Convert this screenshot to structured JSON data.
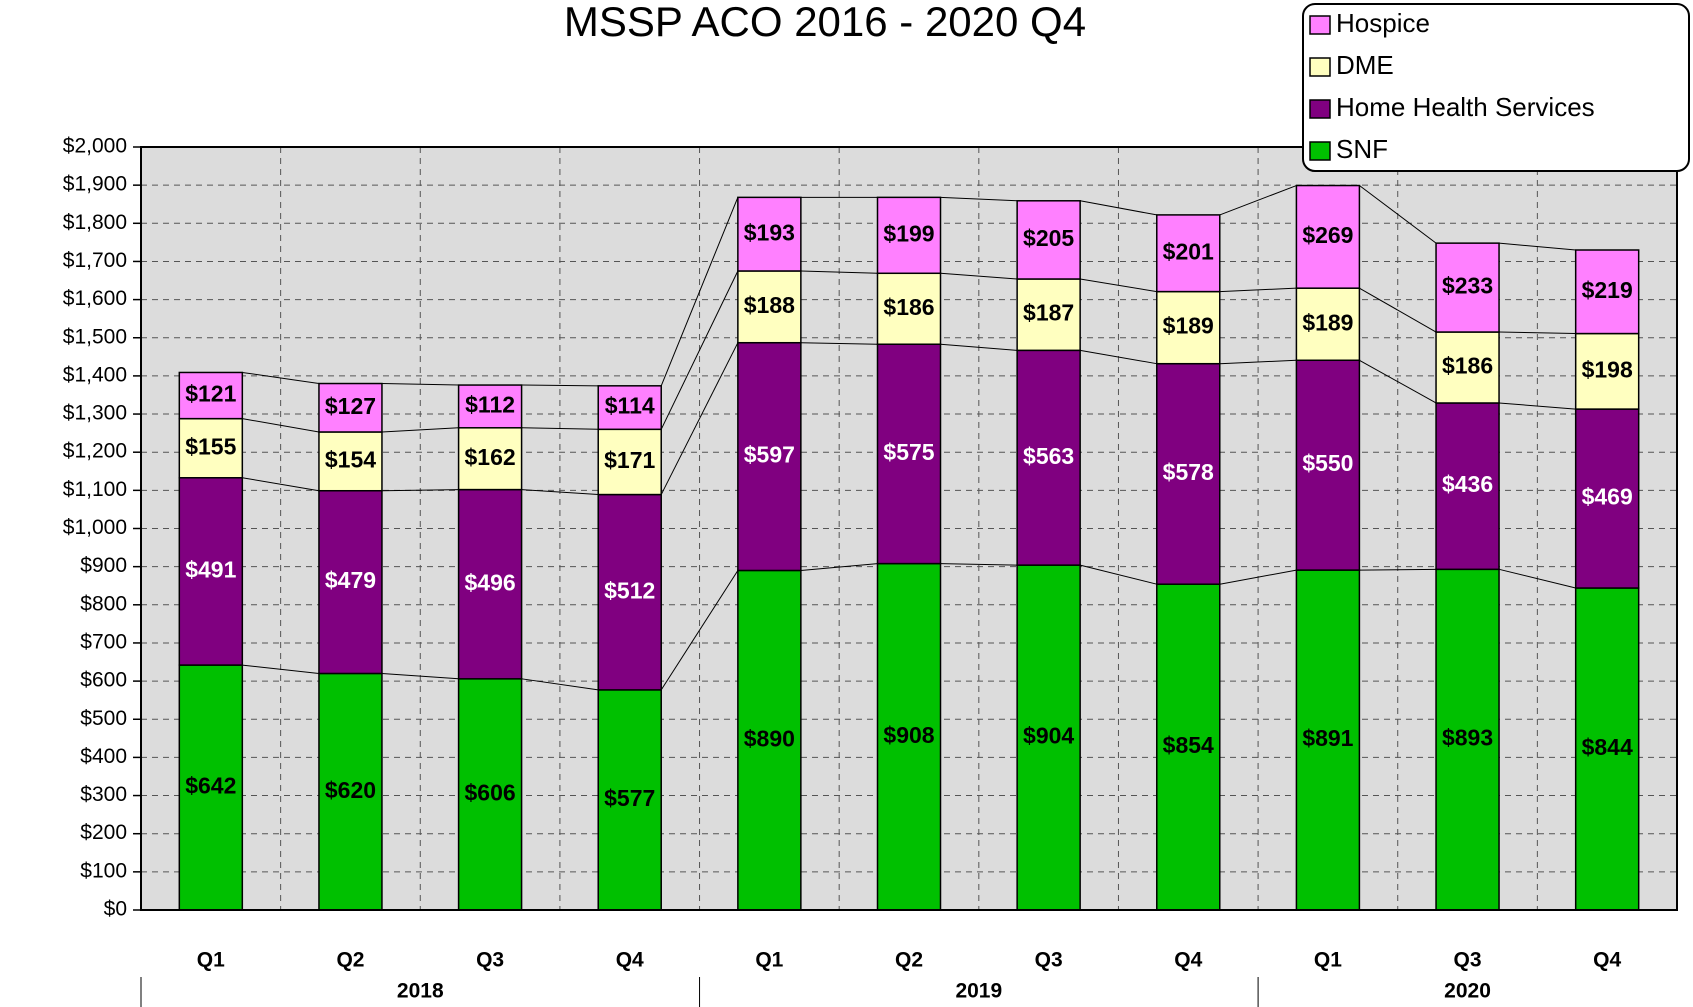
{
  "chart_data": {
    "type": "stacked_bar",
    "title": "MSSP ACO 2016 - 2020 Q4",
    "groups": [
      {
        "label": "2018",
        "categories": [
          "Q1",
          "Q2",
          "Q3",
          "Q4"
        ]
      },
      {
        "label": "2019",
        "categories": [
          "Q1",
          "Q2",
          "Q3",
          "Q4"
        ]
      },
      {
        "label": "2020",
        "categories": [
          "Q1",
          "Q3",
          "Q4"
        ]
      }
    ],
    "series": [
      {
        "name": "SNF",
        "color": "#00c000",
        "label_color": "#000000",
        "values": [
          642,
          620,
          606,
          577,
          890,
          908,
          904,
          854,
          891,
          893,
          844
        ],
        "value_labels": [
          "$642",
          "$620",
          "$606",
          "$577",
          "$890",
          "$908",
          "$904",
          "$854",
          "$891",
          "$893",
          "$844"
        ]
      },
      {
        "name": "Home Health Services",
        "color": "#800080",
        "label_color": "#ffffff",
        "values": [
          491,
          479,
          496,
          512,
          597,
          575,
          563,
          578,
          550,
          436,
          469
        ],
        "value_labels": [
          "$491",
          "$479",
          "$496",
          "$512",
          "$597",
          "$575",
          "$563",
          "$578",
          "$550",
          "$436",
          "$469"
        ]
      },
      {
        "name": "DME",
        "color": "#ffffc0",
        "label_color": "#000000",
        "values": [
          155,
          154,
          162,
          171,
          188,
          186,
          187,
          189,
          189,
          186,
          198
        ],
        "value_labels": [
          "$155",
          "$154",
          "$162",
          "$171",
          "$188",
          "$186",
          "$187",
          "$189",
          "$189",
          "$186",
          "$198"
        ]
      },
      {
        "name": "Hospice",
        "color": "#ff80ff",
        "label_color": "#000000",
        "values": [
          121,
          127,
          112,
          114,
          193,
          199,
          205,
          201,
          269,
          233,
          219
        ],
        "value_labels": [
          "$121",
          "$127",
          "$112",
          "$114",
          "$193",
          "$199",
          "$205",
          "$201",
          "$269",
          "$233",
          "$219"
        ]
      }
    ],
    "ylim": [
      0,
      2000
    ],
    "yticks": [
      {
        "value": 0,
        "label": "$0"
      },
      {
        "value": 100,
        "label": "$100"
      },
      {
        "value": 200,
        "label": "$200"
      },
      {
        "value": 300,
        "label": "$300"
      },
      {
        "value": 400,
        "label": "$400"
      },
      {
        "value": 500,
        "label": "$500"
      },
      {
        "value": 600,
        "label": "$600"
      },
      {
        "value": 700,
        "label": "$700"
      },
      {
        "value": 800,
        "label": "$800"
      },
      {
        "value": 900,
        "label": "$900"
      },
      {
        "value": 1000,
        "label": "$1,000"
      },
      {
        "value": 1100,
        "label": "$1,100"
      },
      {
        "value": 1200,
        "label": "$1,200"
      },
      {
        "value": 1300,
        "label": "$1,300"
      },
      {
        "value": 1400,
        "label": "$1,400"
      },
      {
        "value": 1500,
        "label": "$1,500"
      },
      {
        "value": 1600,
        "label": "$1,600"
      },
      {
        "value": 1700,
        "label": "$1,700"
      },
      {
        "value": 1800,
        "label": "$1,800"
      },
      {
        "value": 1900,
        "label": "$1,900"
      },
      {
        "value": 2000,
        "label": "$2,000"
      }
    ],
    "grid": true,
    "legend": "top-right"
  }
}
